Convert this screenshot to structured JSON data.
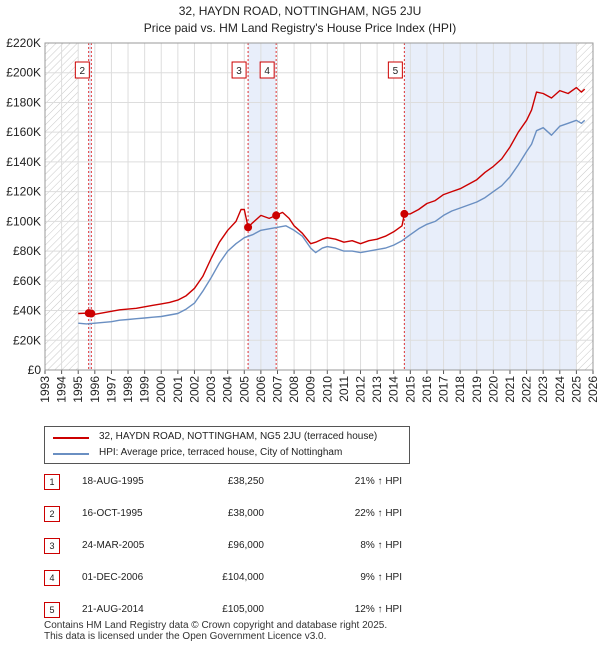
{
  "title": {
    "line1": "32, HAYDN ROAD, NOTTINGHAM, NG5 2JU",
    "line2": "Price paid vs. HM Land Registry's House Price Index (HPI)"
  },
  "chart_data": {
    "type": "line",
    "xlim": [
      1993,
      2026
    ],
    "ylim": [
      0,
      220000
    ],
    "y_ticks": [
      {
        "value": 0,
        "label": "£0"
      },
      {
        "value": 20000,
        "label": "£20K"
      },
      {
        "value": 40000,
        "label": "£40K"
      },
      {
        "value": 60000,
        "label": "£60K"
      },
      {
        "value": 80000,
        "label": "£80K"
      },
      {
        "value": 100000,
        "label": "£100K"
      },
      {
        "value": 120000,
        "label": "£120K"
      },
      {
        "value": 140000,
        "label": "£140K"
      },
      {
        "value": 160000,
        "label": "£160K"
      },
      {
        "value": 180000,
        "label": "£180K"
      },
      {
        "value": 200000,
        "label": "£200K"
      },
      {
        "value": 220000,
        "label": "£220K"
      }
    ],
    "x_ticks": [
      "1993",
      "1994",
      "1995",
      "1996",
      "1997",
      "1998",
      "1999",
      "2000",
      "2001",
      "2002",
      "2003",
      "2004",
      "2005",
      "2006",
      "2007",
      "2008",
      "2009",
      "2010",
      "2011",
      "2012",
      "2013",
      "2014",
      "2015",
      "2016",
      "2017",
      "2018",
      "2019",
      "2020",
      "2021",
      "2022",
      "2023",
      "2024",
      "2025",
      "2026"
    ],
    "grid": true,
    "hatched_ranges": [
      [
        1993,
        1995.0
      ],
      [
        2025.0,
        2026
      ]
    ],
    "shaded_ranges": [
      [
        1995.63,
        1995.79
      ],
      [
        2005.23,
        2006.92
      ],
      [
        2014.64,
        2025.0
      ]
    ],
    "series": [
      {
        "name": "32, HAYDN ROAD, NOTTINGHAM, NG5 2JU (terraced house)",
        "color": "#cc0000",
        "x": [
          1995.0,
          1995.63,
          1995.79,
          1996.0,
          1996.5,
          1997.0,
          1997.5,
          1998.0,
          1998.5,
          1999.0,
          1999.5,
          2000.0,
          2000.5,
          2001.0,
          2001.5,
          2002.0,
          2002.5,
          2003.0,
          2003.5,
          2004.0,
          2004.5,
          2004.8,
          2005.0,
          2005.23,
          2005.5,
          2006.0,
          2006.5,
          2006.92,
          2007.3,
          2007.7,
          2008.0,
          2008.5,
          2009.0,
          2009.3,
          2009.7,
          2010.0,
          2010.5,
          2011.0,
          2011.5,
          2012.0,
          2012.5,
          2013.0,
          2013.5,
          2014.0,
          2014.5,
          2014.64,
          2015.0,
          2015.5,
          2016.0,
          2016.5,
          2017.0,
          2017.5,
          2018.0,
          2018.5,
          2019.0,
          2019.5,
          2020.0,
          2020.5,
          2021.0,
          2021.5,
          2022.0,
          2022.3,
          2022.6,
          2023.0,
          2023.5,
          2024.0,
          2024.5,
          2025.0,
          2025.3,
          2025.5
        ],
        "y": [
          38000,
          38250,
          38000,
          37500,
          38500,
          39500,
          40500,
          41000,
          41500,
          42500,
          43500,
          44500,
          45500,
          47000,
          50000,
          55000,
          63000,
          75000,
          86000,
          94000,
          100000,
          108000,
          108000,
          96000,
          99000,
          104000,
          102000,
          104000,
          106000,
          102000,
          97000,
          92000,
          85000,
          86000,
          88000,
          89000,
          88000,
          86000,
          87000,
          85000,
          87000,
          88000,
          90000,
          93000,
          97000,
          105000,
          105000,
          108000,
          112000,
          114000,
          118000,
          120000,
          122000,
          125000,
          128000,
          133000,
          137000,
          142000,
          150000,
          160000,
          168000,
          175000,
          187000,
          186000,
          183000,
          188000,
          186000,
          190000,
          187000,
          189000
        ]
      },
      {
        "name": "HPI: Average price, terraced house, City of Nottingham",
        "color": "#6a8fc2",
        "x": [
          1995.0,
          1995.5,
          1996.0,
          1996.5,
          1997.0,
          1997.5,
          1998.0,
          1998.5,
          1999.0,
          1999.5,
          2000.0,
          2000.5,
          2001.0,
          2001.5,
          2002.0,
          2002.5,
          2003.0,
          2003.5,
          2004.0,
          2004.5,
          2005.0,
          2005.5,
          2006.0,
          2006.5,
          2007.0,
          2007.5,
          2008.0,
          2008.5,
          2009.0,
          2009.3,
          2009.7,
          2010.0,
          2010.5,
          2011.0,
          2011.5,
          2012.0,
          2012.5,
          2013.0,
          2013.5,
          2014.0,
          2014.5,
          2015.0,
          2015.5,
          2016.0,
          2016.5,
          2017.0,
          2017.5,
          2018.0,
          2018.5,
          2019.0,
          2019.5,
          2020.0,
          2020.5,
          2021.0,
          2021.5,
          2022.0,
          2022.3,
          2022.6,
          2023.0,
          2023.5,
          2024.0,
          2024.5,
          2025.0,
          2025.3,
          2025.5
        ],
        "y": [
          31500,
          31000,
          31500,
          32000,
          32500,
          33500,
          34000,
          34500,
          35000,
          35500,
          36000,
          37000,
          38000,
          41000,
          45000,
          53000,
          62000,
          72000,
          80000,
          85000,
          89000,
          91000,
          94000,
          95000,
          96000,
          97000,
          94000,
          90000,
          82000,
          79000,
          82000,
          83000,
          82000,
          80000,
          80000,
          79000,
          80000,
          81000,
          82000,
          84000,
          87000,
          91000,
          95000,
          98000,
          100000,
          104000,
          107000,
          109000,
          111000,
          113000,
          116000,
          120000,
          124000,
          130000,
          138000,
          147000,
          152000,
          161000,
          163000,
          158000,
          164000,
          166000,
          168000,
          166000,
          168000
        ]
      }
    ],
    "sales": [
      {
        "label": "1",
        "x": 1995.63,
        "price": 38250
      },
      {
        "label": "2",
        "x": 1995.79,
        "price": 38000
      },
      {
        "label": "3",
        "x": 2005.23,
        "price": 96000
      },
      {
        "label": "4",
        "x": 2006.92,
        "price": 104000
      },
      {
        "label": "5",
        "x": 2014.64,
        "price": 105000
      }
    ],
    "chart_boxes": [
      "2",
      "3",
      "4",
      "5"
    ]
  },
  "legend": {
    "property_label": "32, HAYDN ROAD, NOTTINGHAM, NG5 2JU (terraced house)",
    "hpi_label": "HPI: Average price, terraced house, City of Nottingham",
    "property_color": "#cc0000",
    "hpi_color": "#6a8fc2"
  },
  "sales_table": [
    {
      "num": "1",
      "date": "18-AUG-1995",
      "price": "£38,250",
      "hpi": "21% ↑ HPI"
    },
    {
      "num": "2",
      "date": "16-OCT-1995",
      "price": "£38,000",
      "hpi": "22% ↑ HPI"
    },
    {
      "num": "3",
      "date": "24-MAR-2005",
      "price": "£96,000",
      "hpi": "8% ↑ HPI"
    },
    {
      "num": "4",
      "date": "01-DEC-2006",
      "price": "£104,000",
      "hpi": "9% ↑ HPI"
    },
    {
      "num": "5",
      "date": "21-AUG-2014",
      "price": "£105,000",
      "hpi": "12% ↑ HPI"
    }
  ],
  "footer": {
    "line1": "Contains HM Land Registry data © Crown copyright and database right 2025.",
    "line2": "This data is licensed under the Open Government Licence v3.0."
  }
}
